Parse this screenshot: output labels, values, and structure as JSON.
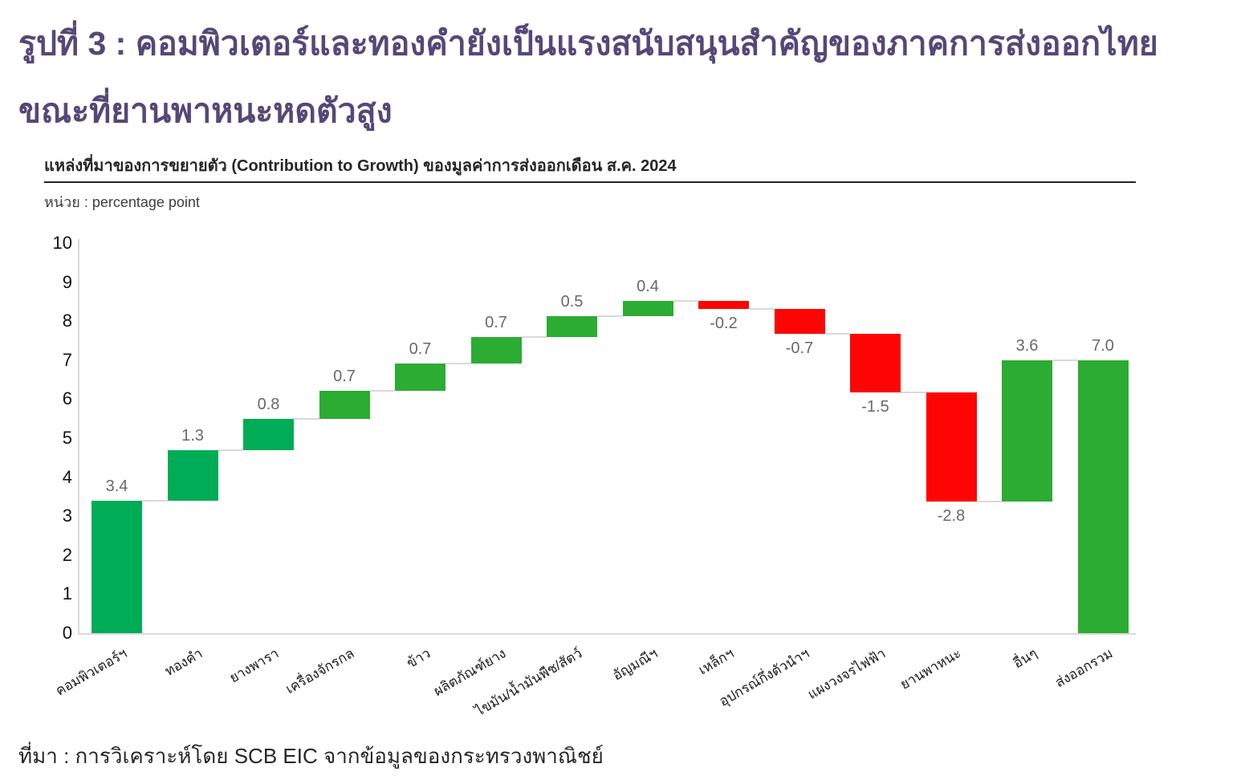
{
  "header": {
    "title_line1": "รูปที่ 3 : คอมพิวเตอร์และทองคำยังเป็นแรงสนับสนุนสำคัญของภาคการส่งออกไทย",
    "title_line2": "ขณะที่ยานพาหนะหดตัวสูง"
  },
  "chart_header": {
    "subtitle": "แหล่งที่มาของการขยายตัว (Contribution to Growth) ของมูลค่าการส่งออกเดือน ส.ค. 2024",
    "unit_label": "หน่วย : percentage point"
  },
  "footer": {
    "source": "ที่มา : การวิเคราะห์โดย SCB EIC จากข้อมูลของกระทรวงพาณิชย์"
  },
  "colors": {
    "title_purple": "#554878",
    "green_primary": "#00AC55",
    "green_secondary": "#2CAC33",
    "red_negative": "#FE0505",
    "connector_gray": "#D9D9D9",
    "axis_gray": "#D9D9D9",
    "value_label_gray": "#696969",
    "text_dark": "#262626"
  },
  "chart_data": {
    "type": "bar",
    "subtype": "waterfall",
    "title": "แหล่งที่มาของการขยายตัว (Contribution to Growth) ของมูลค่าการส่งออกเดือน ส.ค. 2024",
    "unit": "percentage point",
    "xlabel": "",
    "ylabel": "",
    "ylim": [
      0,
      10
    ],
    "yticks": [
      0,
      1,
      2,
      3,
      4,
      5,
      6,
      7,
      8,
      9,
      10
    ],
    "grid": false,
    "legend": "none",
    "categories": [
      "คอมพิวเตอร์ฯ",
      "ทองคำ",
      "ยางพารา",
      "เครื่องจักรกล",
      "ข้าว",
      "ผลิตภัณฑ์ยาง",
      "ไขมัน/น้ำมันพืช/สัตว์",
      "อัญมณีฯ",
      "เหล็กฯ",
      "อุปกรณ์กึ่งตัวนำฯ",
      "แผงวงจรไฟฟ้า",
      "ยานพาหนะ",
      "อื่นๆ",
      "ส่งออกรวม"
    ],
    "values": [
      3.4,
      1.3,
      0.8,
      0.7,
      0.7,
      0.7,
      0.5,
      0.4,
      -0.2,
      -0.7,
      -1.5,
      -2.8,
      3.6,
      7.0
    ],
    "bars": [
      {
        "category": "คอมพิวเตอร์ฯ",
        "label": "3.4",
        "value": 3.4,
        "start": 0,
        "end": 3.4,
        "color": "green_primary"
      },
      {
        "category": "ทองคำ",
        "label": "1.3",
        "value": 1.3,
        "start": 3.4,
        "end": 4.7,
        "color": "green_primary"
      },
      {
        "category": "ยางพารา",
        "label": "0.8",
        "value": 0.8,
        "start": 4.7,
        "end": 5.5,
        "color": "green_primary"
      },
      {
        "category": "เครื่องจักรกล",
        "label": "0.7",
        "value": 0.7,
        "start": 5.5,
        "end": 6.22,
        "color": "green_secondary"
      },
      {
        "category": "ข้าว",
        "label": "0.7",
        "value": 0.7,
        "start": 6.22,
        "end": 6.92,
        "color": "green_secondary"
      },
      {
        "category": "ผลิตภัณฑ์ยาง",
        "label": "0.7",
        "value": 0.7,
        "start": 6.92,
        "end": 7.6,
        "color": "green_secondary"
      },
      {
        "category": "ไขมัน/น้ำมันพืช/สัตว์",
        "label": "0.5",
        "value": 0.5,
        "start": 7.6,
        "end": 8.12,
        "color": "green_secondary"
      },
      {
        "category": "อัญมณีฯ",
        "label": "0.4",
        "value": 0.4,
        "start": 8.12,
        "end": 8.52,
        "color": "green_secondary"
      },
      {
        "category": "เหล็กฯ",
        "label": "-0.2",
        "value": -0.2,
        "start": 8.52,
        "end": 8.32,
        "color": "red_negative"
      },
      {
        "category": "อุปกรณ์กึ่งตัวนำฯ",
        "label": "-0.7",
        "value": -0.7,
        "start": 8.32,
        "end": 7.67,
        "color": "red_negative"
      },
      {
        "category": "แผงวงจรไฟฟ้า",
        "label": "-1.5",
        "value": -1.5,
        "start": 7.67,
        "end": 6.17,
        "color": "red_negative"
      },
      {
        "category": "ยานพาหนะ",
        "label": "-2.8",
        "value": -2.8,
        "start": 6.17,
        "end": 3.37,
        "color": "red_negative"
      },
      {
        "category": "อื่นๆ",
        "label": "3.6",
        "value": 3.6,
        "start": 3.37,
        "end": 7.0,
        "color": "green_secondary"
      },
      {
        "category": "ส่งออกรวม",
        "label": "7.0",
        "value": 7.0,
        "start": 0,
        "end": 7.0,
        "color": "green_secondary"
      }
    ]
  }
}
